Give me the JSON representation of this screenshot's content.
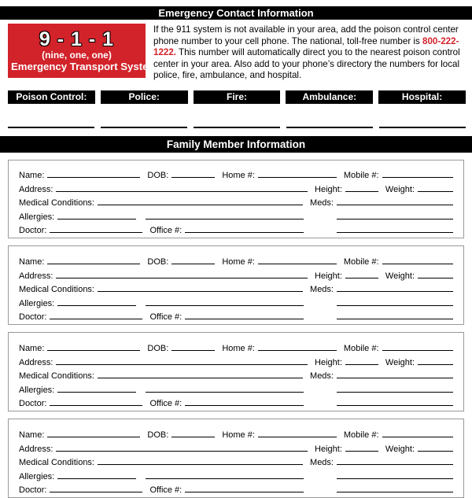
{
  "header": {
    "title": "Emergency Contact Information"
  },
  "panel911": {
    "number": "9 - 1 - 1",
    "subtitle": "(nine, one, one)",
    "label": "Emergency Transport System",
    "bg_color": "#d2232a"
  },
  "instructions": {
    "part1": "If the 911 system is not available in your area, add the poison control center phone number to your cell phone. The national, toll-free number is ",
    "phone": "800-222-1222.",
    "part2": " This number will automatically direct you to the nearest poison control center in your area. Also add to your phone’s directory the numbers for local police, fire, ambulance, and hospital.",
    "phone_color": "#d2232a"
  },
  "contacts": {
    "labels": [
      "Poison Control:",
      "Police:",
      "Fire:",
      "Ambulance:",
      "Hospital:"
    ]
  },
  "family": {
    "title": "Family Member Information",
    "count": 4,
    "fields": {
      "name": "Name:",
      "dob": "DOB:",
      "home": "Home #:",
      "mobile": "Mobile #:",
      "address": "Address:",
      "height": "Height:",
      "weight": "Weight:",
      "medical": "Medical Conditions:",
      "meds": "Meds:",
      "allergies": "Allergies:",
      "doctor": "Doctor:",
      "office": "Office #:"
    }
  }
}
